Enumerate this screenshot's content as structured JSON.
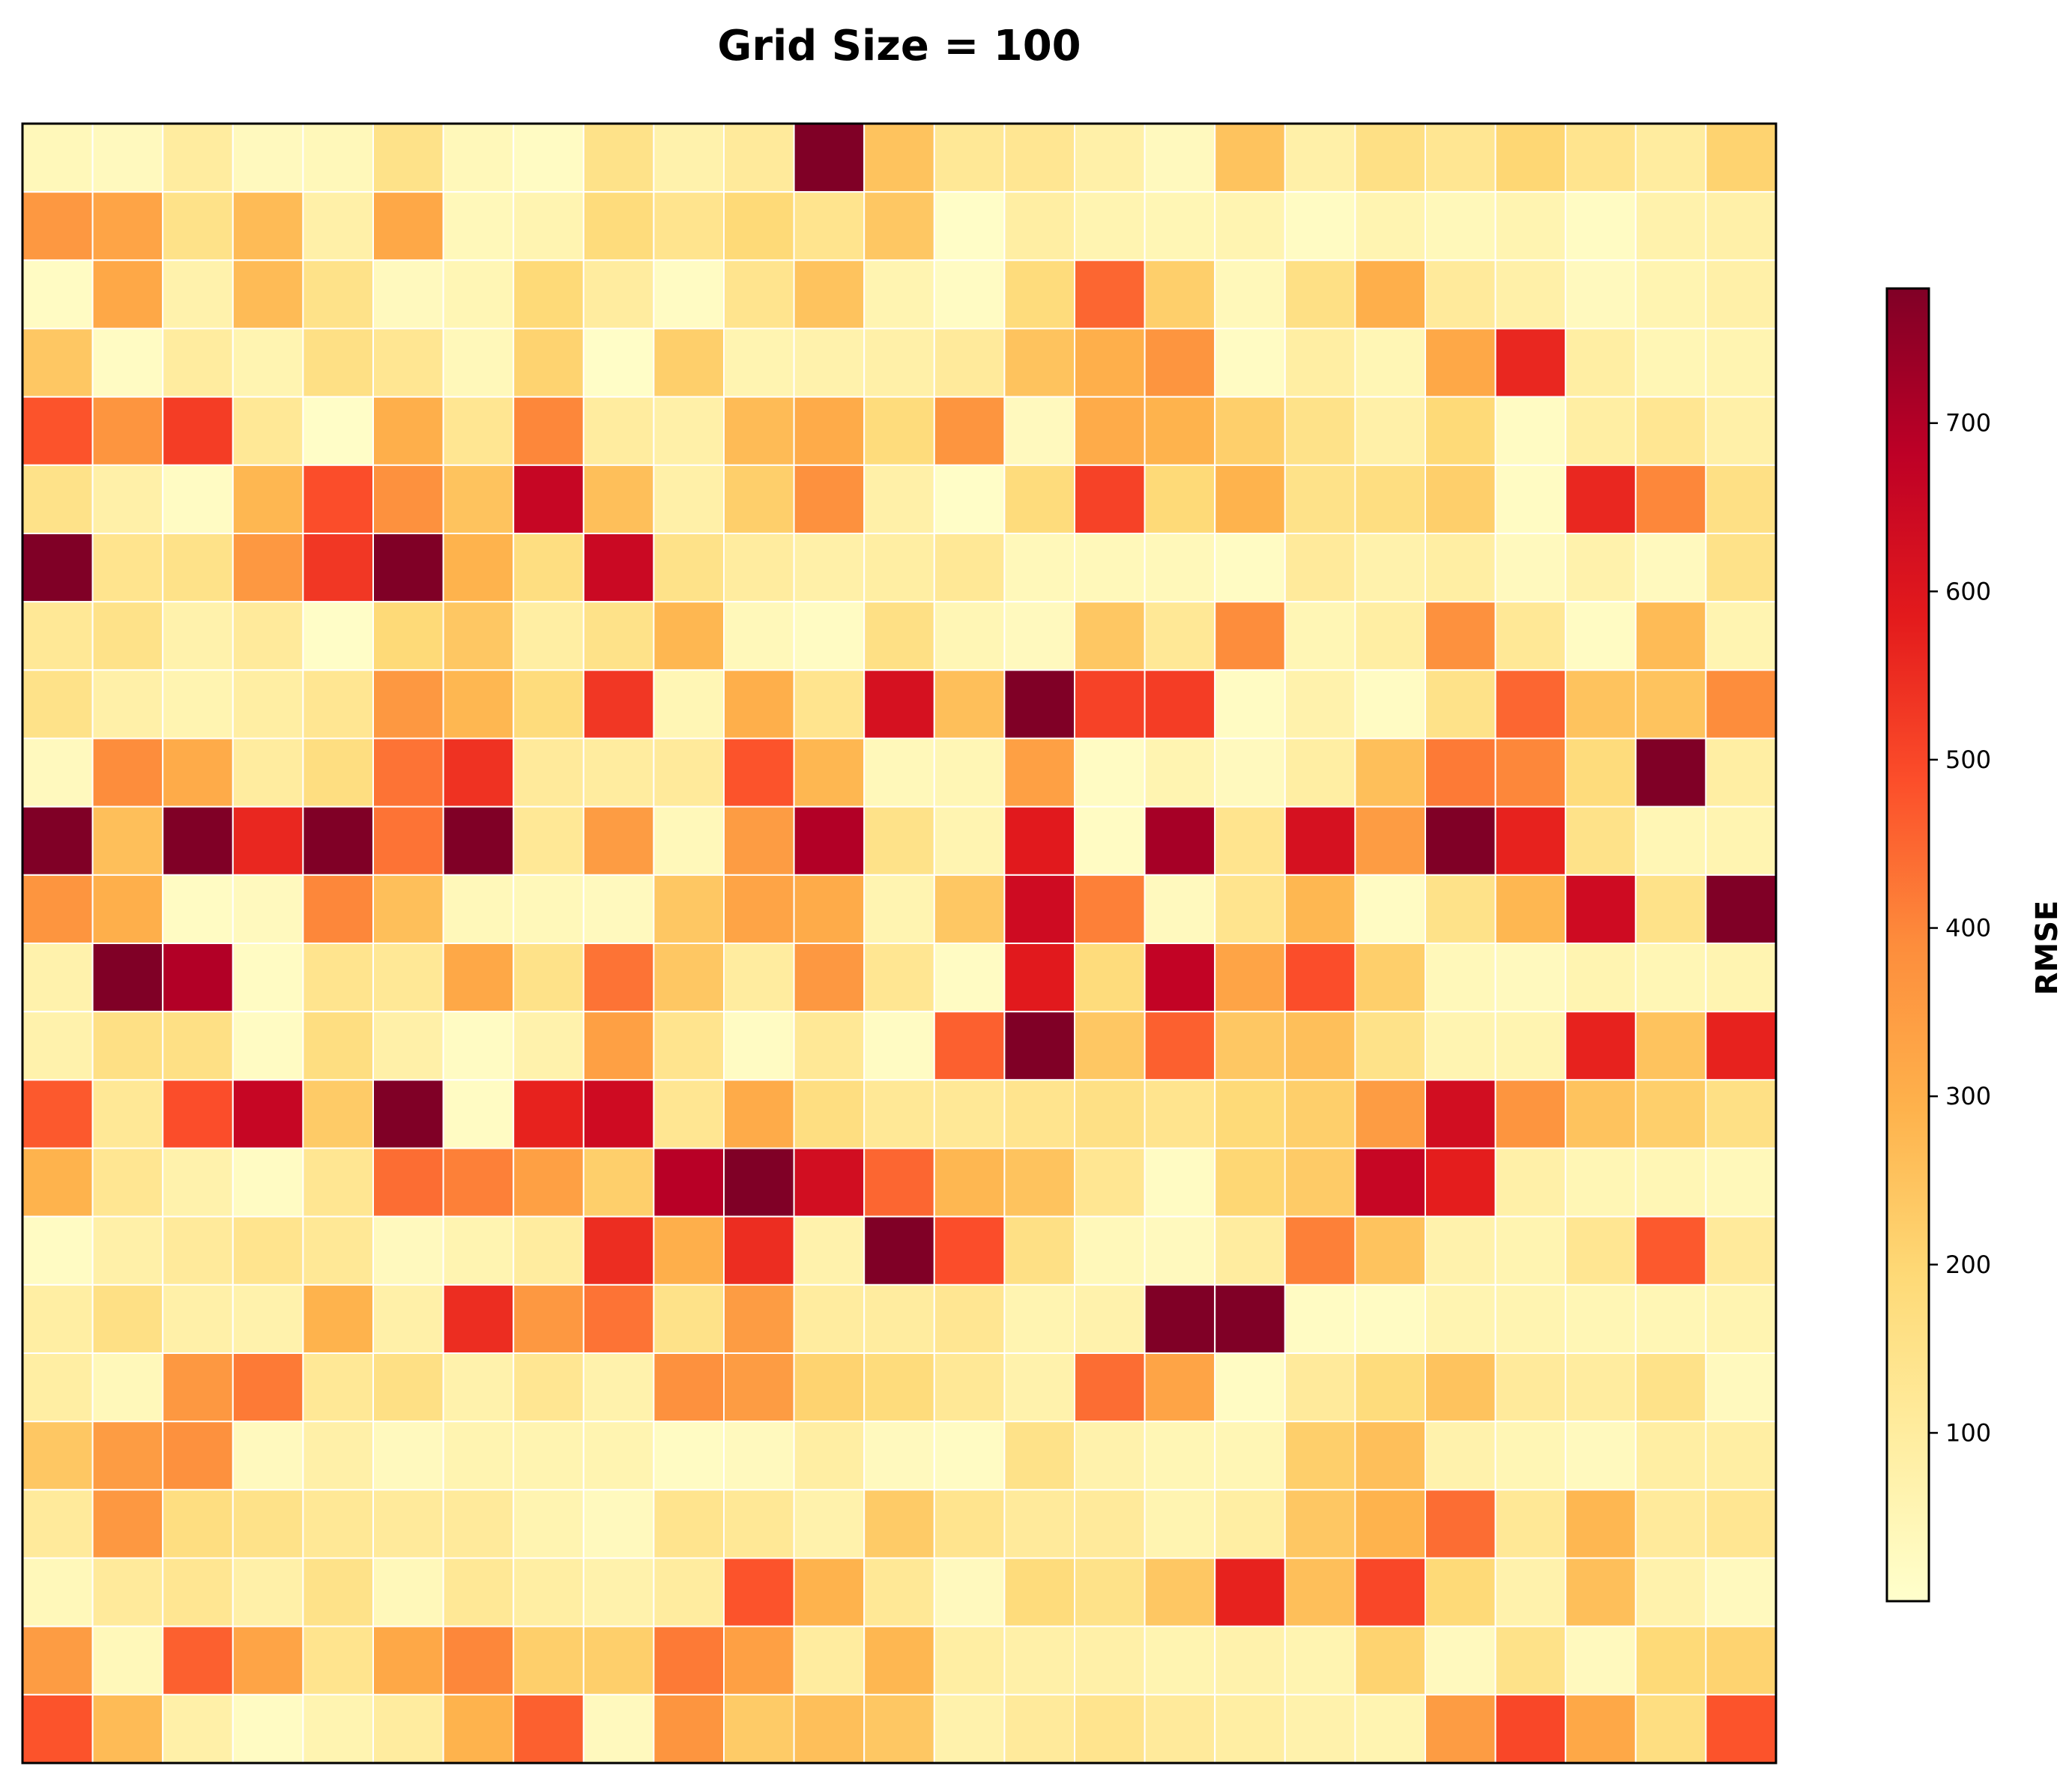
{
  "chart_data": {
    "type": "heatmap",
    "title": "Grid Size = 100",
    "rows": 24,
    "cols": 25,
    "values": [
      [
        40,
        30,
        100,
        30,
        40,
        150,
        40,
        20,
        150,
        70,
        110,
        780,
        250,
        120,
        130,
        80,
        30,
        250,
        80,
        160,
        130,
        200,
        140,
        100,
        210
      ],
      [
        360,
        330,
        150,
        270,
        80,
        320,
        40,
        60,
        180,
        140,
        190,
        140,
        240,
        10,
        90,
        60,
        50,
        60,
        20,
        60,
        40,
        60,
        20,
        70,
        80
      ],
      [
        20,
        320,
        70,
        270,
        150,
        30,
        50,
        190,
        100,
        20,
        140,
        250,
        60,
        20,
        180,
        450,
        220,
        40,
        160,
        300,
        110,
        80,
        30,
        60,
        80
      ],
      [
        240,
        20,
        100,
        60,
        160,
        130,
        40,
        210,
        10,
        220,
        60,
        70,
        80,
        110,
        250,
        300,
        370,
        20,
        90,
        50,
        320,
        560,
        90,
        50,
        60
      ],
      [
        480,
        370,
        520,
        120,
        10,
        300,
        130,
        400,
        100,
        80,
        270,
        310,
        180,
        370,
        30,
        310,
        290,
        220,
        150,
        80,
        190,
        20,
        90,
        130,
        80
      ],
      [
        150,
        80,
        20,
        280,
        490,
        380,
        250,
        660,
        260,
        80,
        220,
        380,
        80,
        10,
        180,
        510,
        190,
        290,
        150,
        170,
        220,
        20,
        560,
        400,
        160
      ],
      [
        780,
        140,
        150,
        360,
        530,
        780,
        290,
        170,
        650,
        150,
        100,
        80,
        90,
        120,
        40,
        40,
        40,
        20,
        110,
        70,
        90,
        30,
        70,
        30,
        150
      ],
      [
        120,
        150,
        70,
        110,
        10,
        190,
        240,
        90,
        150,
        280,
        40,
        20,
        160,
        50,
        30,
        240,
        120,
        390,
        50,
        90,
        380,
        120,
        20,
        270,
        60
      ],
      [
        150,
        80,
        60,
        90,
        130,
        360,
        280,
        180,
        530,
        50,
        300,
        140,
        620,
        260,
        780,
        510,
        520,
        20,
        70,
        20,
        150,
        450,
        250,
        250,
        390
      ],
      [
        30,
        390,
        310,
        100,
        170,
        430,
        540,
        110,
        100,
        110,
        480,
        280,
        40,
        50,
        340,
        20,
        60,
        30,
        90,
        260,
        420,
        400,
        180,
        780,
        90
      ],
      [
        780,
        260,
        780,
        560,
        780,
        430,
        780,
        120,
        350,
        40,
        350,
        700,
        150,
        60,
        590,
        20,
        720,
        140,
        620,
        350,
        780,
        570,
        150,
        50,
        60
      ],
      [
        370,
        300,
        20,
        30,
        400,
        260,
        40,
        40,
        30,
        240,
        330,
        310,
        60,
        240,
        640,
        410,
        30,
        140,
        280,
        20,
        150,
        280,
        640,
        150,
        780
      ],
      [
        70,
        780,
        700,
        20,
        140,
        120,
        320,
        150,
        430,
        240,
        100,
        360,
        130,
        20,
        590,
        180,
        670,
        330,
        490,
        220,
        40,
        30,
        60,
        50,
        60
      ],
      [
        70,
        160,
        160,
        20,
        170,
        80,
        20,
        70,
        340,
        140,
        20,
        120,
        20,
        460,
        780,
        240,
        460,
        240,
        260,
        150,
        60,
        60,
        570,
        250,
        570
      ],
      [
        470,
        120,
        490,
        660,
        230,
        780,
        20,
        570,
        640,
        130,
        310,
        170,
        120,
        120,
        140,
        160,
        140,
        190,
        220,
        350,
        630,
        370,
        250,
        220,
        160
      ],
      [
        290,
        130,
        70,
        20,
        130,
        440,
        410,
        340,
        220,
        690,
        780,
        630,
        450,
        280,
        250,
        130,
        20,
        200,
        230,
        660,
        580,
        80,
        50,
        50,
        40
      ],
      [
        20,
        80,
        110,
        140,
        120,
        30,
        60,
        100,
        550,
        300,
        550,
        70,
        780,
        490,
        160,
        40,
        30,
        100,
        410,
        250,
        70,
        60,
        130,
        470,
        110
      ],
      [
        90,
        160,
        80,
        70,
        290,
        80,
        550,
        360,
        430,
        150,
        350,
        100,
        100,
        130,
        60,
        70,
        780,
        780,
        20,
        20,
        60,
        60,
        50,
        50,
        60
      ],
      [
        90,
        40,
        360,
        420,
        120,
        160,
        70,
        130,
        70,
        380,
        350,
        210,
        180,
        120,
        70,
        440,
        330,
        20,
        110,
        180,
        250,
        110,
        100,
        150,
        30
      ],
      [
        240,
        350,
        380,
        30,
        80,
        30,
        60,
        60,
        60,
        20,
        30,
        90,
        30,
        20,
        150,
        70,
        50,
        50,
        220,
        260,
        70,
        50,
        30,
        90,
        90
      ],
      [
        110,
        360,
        170,
        150,
        120,
        110,
        110,
        60,
        30,
        140,
        120,
        70,
        230,
        140,
        110,
        110,
        60,
        90,
        240,
        290,
        440,
        120,
        280,
        110,
        130
      ],
      [
        40,
        110,
        130,
        80,
        150,
        40,
        120,
        90,
        70,
        100,
        480,
        290,
        120,
        30,
        180,
        150,
        240,
        570,
        260,
        500,
        190,
        70,
        260,
        70,
        30
      ],
      [
        350,
        40,
        460,
        330,
        140,
        320,
        400,
        220,
        220,
        420,
        340,
        100,
        280,
        90,
        80,
        80,
        60,
        70,
        60,
        210,
        30,
        150,
        30,
        190,
        210
      ],
      [
        480,
        270,
        80,
        20,
        60,
        100,
        290,
        460,
        30,
        370,
        230,
        260,
        240,
        70,
        110,
        140,
        110,
        90,
        70,
        60,
        350,
        500,
        320,
        170,
        480
      ]
    ],
    "color_scale": {
      "name": "YlOrRd",
      "min": 0,
      "max": 780,
      "label": "RMSE",
      "ticks": [
        100,
        200,
        300,
        400,
        500,
        600,
        700
      ],
      "tick_labels": [
        "100",
        "200",
        "300",
        "400",
        "500",
        "600",
        "700"
      ]
    },
    "xlabel": "",
    "ylabel": "",
    "grid_lines_color": "#ffffff"
  }
}
